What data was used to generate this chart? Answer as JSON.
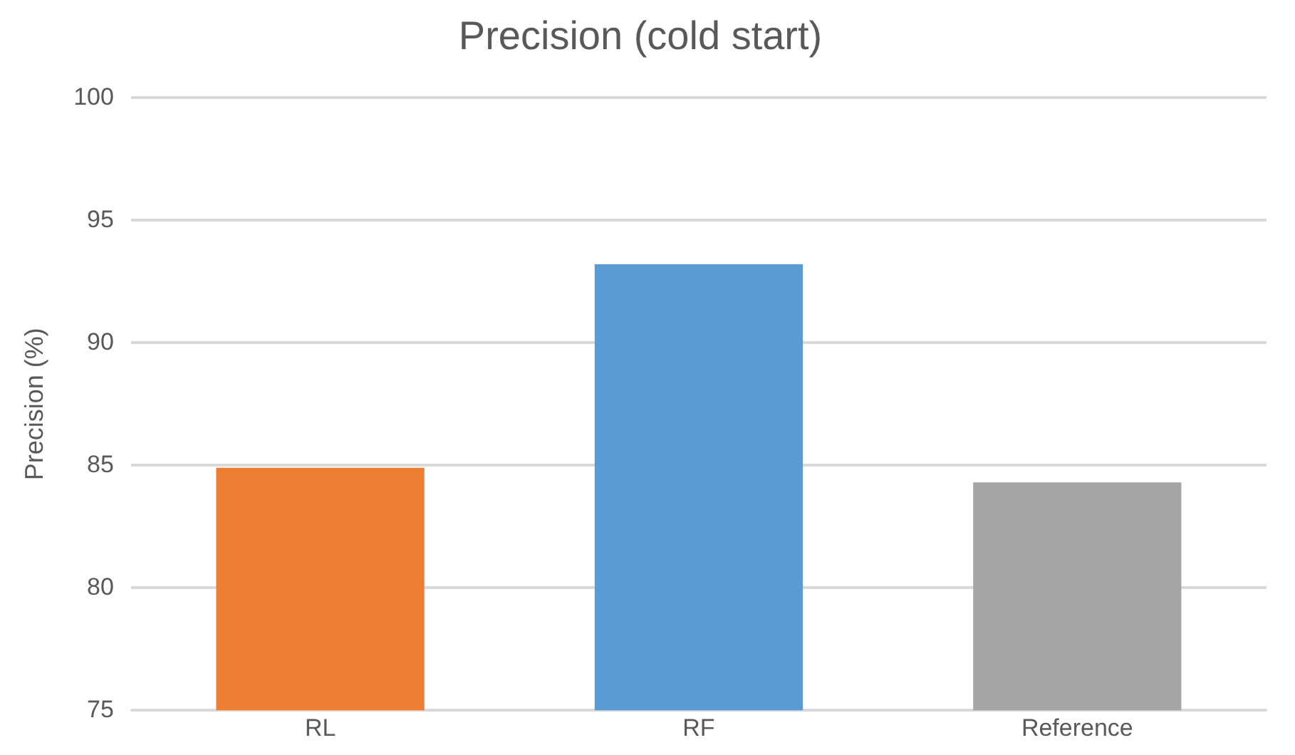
{
  "chart_data": {
    "type": "bar",
    "title": "Precision (cold start)",
    "ylabel": "Precision (%)",
    "categories": [
      "RL",
      "RF",
      "Reference"
    ],
    "values": [
      84.9,
      93.2,
      84.3
    ],
    "colors": [
      "#ed7d31",
      "#5b9bd5",
      "#a5a5a5"
    ],
    "ylim": [
      75,
      100
    ],
    "yticks": [
      75,
      80,
      85,
      90,
      95,
      100
    ],
    "grid": "y"
  }
}
